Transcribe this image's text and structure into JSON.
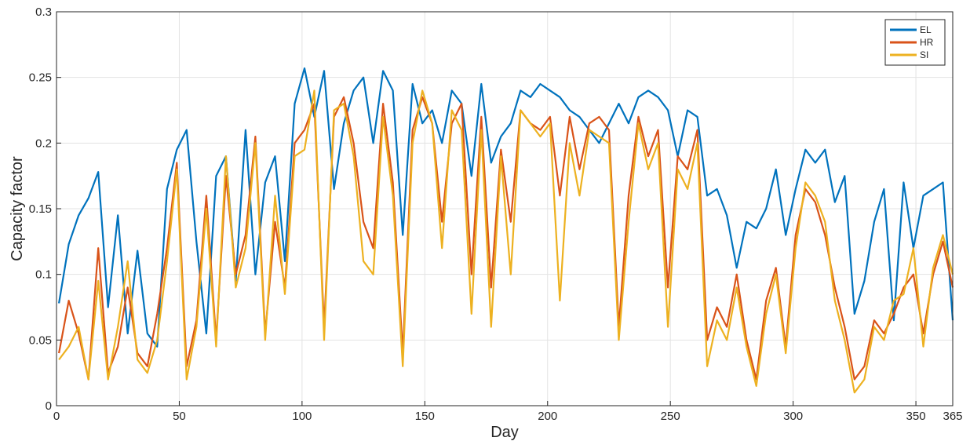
{
  "chart_data": {
    "type": "line",
    "title": "",
    "xlabel": "Day",
    "ylabel": "Capacity factor",
    "xlim": [
      0,
      365
    ],
    "ylim": [
      0,
      0.3
    ],
    "xticks": [
      0,
      50,
      100,
      150,
      200,
      250,
      300,
      350,
      365
    ],
    "xtick_labels": [
      "0",
      "50",
      "100",
      "150",
      "200",
      "250",
      "300",
      "350",
      "365"
    ],
    "yticks": [
      0,
      0.05,
      0.1,
      0.15,
      0.2,
      0.25,
      0.3
    ],
    "ytick_labels": [
      "0",
      "0.05",
      "0.1",
      "0.15",
      "0.2",
      "0.25",
      "0.3"
    ],
    "grid": true,
    "legend_position": "top-right",
    "x": [
      1,
      5,
      9,
      13,
      17,
      21,
      25,
      29,
      33,
      37,
      41,
      45,
      49,
      53,
      57,
      61,
      65,
      69,
      73,
      77,
      81,
      85,
      89,
      93,
      97,
      101,
      105,
      109,
      113,
      117,
      121,
      125,
      129,
      133,
      137,
      141,
      145,
      149,
      153,
      157,
      161,
      165,
      169,
      173,
      177,
      181,
      185,
      189,
      193,
      197,
      201,
      205,
      209,
      213,
      217,
      221,
      225,
      229,
      233,
      237,
      241,
      245,
      249,
      253,
      257,
      261,
      265,
      269,
      273,
      277,
      281,
      285,
      289,
      293,
      297,
      301,
      305,
      309,
      313,
      317,
      321,
      325,
      329,
      333,
      337,
      341,
      345,
      349,
      353,
      357,
      361,
      365
    ],
    "series": [
      {
        "name": "EL",
        "color": "#0072BD",
        "values": [
          0.078,
          0.123,
          0.145,
          0.158,
          0.178,
          0.075,
          0.145,
          0.055,
          0.118,
          0.055,
          0.045,
          0.165,
          0.195,
          0.21,
          0.125,
          0.055,
          0.175,
          0.19,
          0.095,
          0.21,
          0.1,
          0.17,
          0.19,
          0.11,
          0.23,
          0.257,
          0.22,
          0.255,
          0.165,
          0.215,
          0.24,
          0.25,
          0.2,
          0.255,
          0.24,
          0.13,
          0.245,
          0.215,
          0.225,
          0.2,
          0.24,
          0.23,
          0.175,
          0.245,
          0.185,
          0.205,
          0.215,
          0.24,
          0.235,
          0.245,
          0.24,
          0.235,
          0.225,
          0.22,
          0.21,
          0.2,
          0.215,
          0.23,
          0.215,
          0.235,
          0.24,
          0.235,
          0.225,
          0.19,
          0.225,
          0.22,
          0.16,
          0.165,
          0.145,
          0.105,
          0.14,
          0.135,
          0.15,
          0.18,
          0.13,
          0.165,
          0.195,
          0.185,
          0.195,
          0.155,
          0.175,
          0.07,
          0.095,
          0.14,
          0.165,
          0.065,
          0.17,
          0.12,
          0.16,
          0.165,
          0.17,
          0.065
        ]
      },
      {
        "name": "HR",
        "color": "#D95319",
        "values": [
          0.04,
          0.08,
          0.055,
          0.02,
          0.12,
          0.025,
          0.045,
          0.09,
          0.04,
          0.03,
          0.07,
          0.12,
          0.185,
          0.03,
          0.065,
          0.16,
          0.05,
          0.175,
          0.1,
          0.13,
          0.205,
          0.055,
          0.14,
          0.09,
          0.2,
          0.21,
          0.23,
          0.06,
          0.22,
          0.235,
          0.2,
          0.14,
          0.12,
          0.23,
          0.17,
          0.04,
          0.21,
          0.235,
          0.215,
          0.14,
          0.215,
          0.23,
          0.1,
          0.22,
          0.09,
          0.195,
          0.14,
          0.225,
          0.215,
          0.21,
          0.22,
          0.16,
          0.22,
          0.18,
          0.215,
          0.22,
          0.21,
          0.06,
          0.16,
          0.22,
          0.19,
          0.21,
          0.09,
          0.19,
          0.18,
          0.21,
          0.05,
          0.075,
          0.06,
          0.1,
          0.05,
          0.02,
          0.08,
          0.105,
          0.045,
          0.13,
          0.165,
          0.155,
          0.13,
          0.09,
          0.06,
          0.02,
          0.03,
          0.065,
          0.055,
          0.07,
          0.09,
          0.1,
          0.055,
          0.1,
          0.125,
          0.09
        ]
      },
      {
        "name": "SI",
        "color": "#EDB120",
        "values": [
          0.035,
          0.045,
          0.06,
          0.02,
          0.095,
          0.02,
          0.06,
          0.11,
          0.035,
          0.025,
          0.05,
          0.11,
          0.18,
          0.02,
          0.06,
          0.15,
          0.045,
          0.19,
          0.09,
          0.12,
          0.2,
          0.05,
          0.16,
          0.085,
          0.19,
          0.195,
          0.24,
          0.05,
          0.225,
          0.23,
          0.19,
          0.11,
          0.1,
          0.22,
          0.16,
          0.03,
          0.2,
          0.24,
          0.215,
          0.12,
          0.225,
          0.21,
          0.07,
          0.21,
          0.06,
          0.19,
          0.1,
          0.225,
          0.215,
          0.205,
          0.215,
          0.08,
          0.2,
          0.16,
          0.21,
          0.205,
          0.2,
          0.05,
          0.14,
          0.215,
          0.18,
          0.2,
          0.06,
          0.18,
          0.165,
          0.2,
          0.03,
          0.065,
          0.05,
          0.09,
          0.045,
          0.015,
          0.07,
          0.1,
          0.04,
          0.12,
          0.17,
          0.16,
          0.14,
          0.08,
          0.05,
          0.01,
          0.02,
          0.06,
          0.05,
          0.08,
          0.085,
          0.12,
          0.045,
          0.105,
          0.13,
          0.1
        ]
      }
    ]
  }
}
